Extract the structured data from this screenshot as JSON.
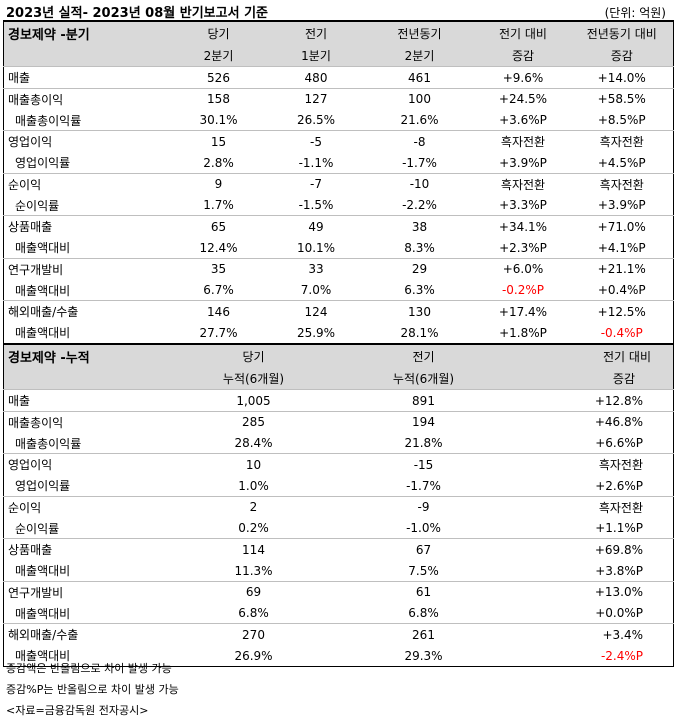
{
  "header": {
    "title": "2023년 실적- 2023년 08월 반기보고서 기준",
    "unit": "(단위: 억원)"
  },
  "quarter": {
    "name": "경보제약 -분기",
    "columns": [
      {
        "line1": "당기",
        "line2": "2분기"
      },
      {
        "line1": "전기",
        "line2": "1분기"
      },
      {
        "line1": "전년동기",
        "line2": "2분기"
      },
      {
        "line1": "전기 대비",
        "line2": "증감"
      },
      {
        "line1": "전년동기 대비",
        "line2": "증감"
      }
    ],
    "rows": [
      {
        "label": "매출",
        "values": [
          "526",
          "480",
          "461",
          "+9.6%",
          "+14.0%"
        ],
        "sub": false,
        "red": []
      },
      {
        "label": "매출총이익",
        "values": [
          "158",
          "127",
          "100",
          "+24.5%",
          "+58.5%"
        ],
        "sub": false,
        "red": []
      },
      {
        "label": "매출총이익률",
        "values": [
          "30.1%",
          "26.5%",
          "21.6%",
          "+3.6%P",
          "+8.5%P"
        ],
        "sub": true,
        "red": []
      },
      {
        "label": "영업이익",
        "values": [
          "15",
          "-5",
          "-8",
          "흑자전환",
          "흑자전환"
        ],
        "sub": false,
        "red": []
      },
      {
        "label": "영업이익률",
        "values": [
          "2.8%",
          "-1.1%",
          "-1.7%",
          "+3.9%P",
          "+4.5%P"
        ],
        "sub": true,
        "red": []
      },
      {
        "label": "순이익",
        "values": [
          "9",
          "-7",
          "-10",
          "흑자전환",
          "흑자전환"
        ],
        "sub": false,
        "red": []
      },
      {
        "label": "순이익률",
        "values": [
          "1.7%",
          "-1.5%",
          "-2.2%",
          "+3.3%P",
          "+3.9%P"
        ],
        "sub": true,
        "red": []
      },
      {
        "label": "상품매출",
        "values": [
          "65",
          "49",
          "38",
          "+34.1%",
          "+71.0%"
        ],
        "sub": false,
        "red": []
      },
      {
        "label": "매출액대비",
        "values": [
          "12.4%",
          "10.1%",
          "8.3%",
          "+2.3%P",
          "+4.1%P"
        ],
        "sub": true,
        "red": []
      },
      {
        "label": "연구개발비",
        "values": [
          "35",
          "33",
          "29",
          "+6.0%",
          "+21.1%"
        ],
        "sub": false,
        "red": []
      },
      {
        "label": "매출액대비",
        "values": [
          "6.7%",
          "7.0%",
          "6.3%",
          "-0.2%P",
          "+0.4%P"
        ],
        "sub": true,
        "red": [
          3
        ]
      },
      {
        "label": "해외매출/수출",
        "values": [
          "146",
          "124",
          "130",
          "+17.4%",
          "+12.5%"
        ],
        "sub": false,
        "red": []
      },
      {
        "label": "매출액대비",
        "values": [
          "27.7%",
          "25.9%",
          "28.1%",
          "+1.8%P",
          "-0.4%P"
        ],
        "sub": true,
        "red": [
          4
        ]
      }
    ]
  },
  "cumulative": {
    "name": "경보제약 -누적",
    "columns": [
      {
        "line1": "당기",
        "line2": "누적(6개월)"
      },
      {
        "line1": "전기",
        "line2": "누적(6개월)"
      },
      {
        "line1": "전기 대비",
        "line2": "증감"
      }
    ],
    "rows": [
      {
        "label": "매출",
        "values": [
          "1,005",
          "891",
          "+12.8%"
        ],
        "sub": false,
        "red": []
      },
      {
        "label": "매출총이익",
        "values": [
          "285",
          "194",
          "+46.8%"
        ],
        "sub": false,
        "red": []
      },
      {
        "label": "매출총이익률",
        "values": [
          "28.4%",
          "21.8%",
          "+6.6%P"
        ],
        "sub": true,
        "red": []
      },
      {
        "label": "영업이익",
        "values": [
          "10",
          "-15",
          "흑자전환"
        ],
        "sub": false,
        "red": []
      },
      {
        "label": "영업이익률",
        "values": [
          "1.0%",
          "-1.7%",
          "+2.6%P"
        ],
        "sub": true,
        "red": []
      },
      {
        "label": "순이익",
        "values": [
          "2",
          "-9",
          "흑자전환"
        ],
        "sub": false,
        "red": []
      },
      {
        "label": "순이익률",
        "values": [
          "0.2%",
          "-1.0%",
          "+1.1%P"
        ],
        "sub": true,
        "red": []
      },
      {
        "label": "상품매출",
        "values": [
          "114",
          "67",
          "+69.8%"
        ],
        "sub": false,
        "red": []
      },
      {
        "label": "매출액대비",
        "values": [
          "11.3%",
          "7.5%",
          "+3.8%P"
        ],
        "sub": true,
        "red": []
      },
      {
        "label": "연구개발비",
        "values": [
          "69",
          "61",
          "+13.0%"
        ],
        "sub": false,
        "red": []
      },
      {
        "label": "매출액대비",
        "values": [
          "6.8%",
          "6.8%",
          "+0.0%P"
        ],
        "sub": true,
        "red": []
      },
      {
        "label": "해외매출/수출",
        "values": [
          "270",
          "261",
          "+3.4%"
        ],
        "sub": false,
        "red": []
      },
      {
        "label": "매출액대비",
        "values": [
          "26.9%",
          "29.3%",
          "-2.4%P"
        ],
        "sub": true,
        "red": [
          2
        ]
      }
    ]
  },
  "notes": [
    "증감액은 반올림으로 차이 발생 가능",
    "증감%P는 반올림으로 차이 발생 가능",
    "<자료=금융감독원 전자공시>"
  ]
}
